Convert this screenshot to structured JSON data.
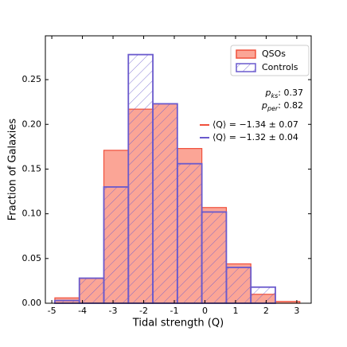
{
  "chart_data": {
    "type": "histogram",
    "xlabel": "Tidal strength (Q)",
    "ylabel": "Fraction of Galaxies",
    "bins": [
      -4.9,
      -4.1,
      -3.3,
      -2.5,
      -1.7,
      -0.9,
      -0.1,
      0.7,
      1.5,
      2.3,
      3.1
    ],
    "series": [
      {
        "name": "QSOs",
        "color": "#f0503c",
        "fill": "#fba596",
        "values": [
          0.006,
          0.028,
          0.171,
          0.217,
          0.223,
          0.173,
          0.107,
          0.044,
          0.01,
          0.002
        ],
        "mean_label": "⟨Q⟩ = −1.34 ± 0.07"
      },
      {
        "name": "Controls",
        "color": "#6a5acd",
        "hatch": true,
        "values": [
          0.003,
          0.028,
          0.13,
          0.278,
          0.223,
          0.156,
          0.102,
          0.04,
          0.018,
          0
        ],
        "mean_label": "⟨Q⟩ = −1.32 ± 0.04"
      }
    ],
    "stats": [
      {
        "symbol": "p",
        "sub": "ks",
        "text": ": 0.37"
      },
      {
        "symbol": "p",
        "sub": "per",
        "text": ": 0.82"
      }
    ],
    "xlim": [
      -5.21,
      3.47
    ],
    "ylim": [
      0,
      0.299
    ],
    "xticks": [
      -5,
      -4,
      -3,
      -2,
      -1,
      0,
      1,
      2,
      3
    ],
    "yticks": [
      {
        "value": 0,
        "label": "0.00"
      },
      {
        "value": 0.05,
        "label": "0.05"
      },
      {
        "value": 0.1,
        "label": "0.10"
      },
      {
        "value": 0.15,
        "label": "0.15"
      },
      {
        "value": 0.2,
        "label": "0.20"
      },
      {
        "value": 0.25,
        "label": "0.25"
      }
    ],
    "legend": "upper right"
  }
}
